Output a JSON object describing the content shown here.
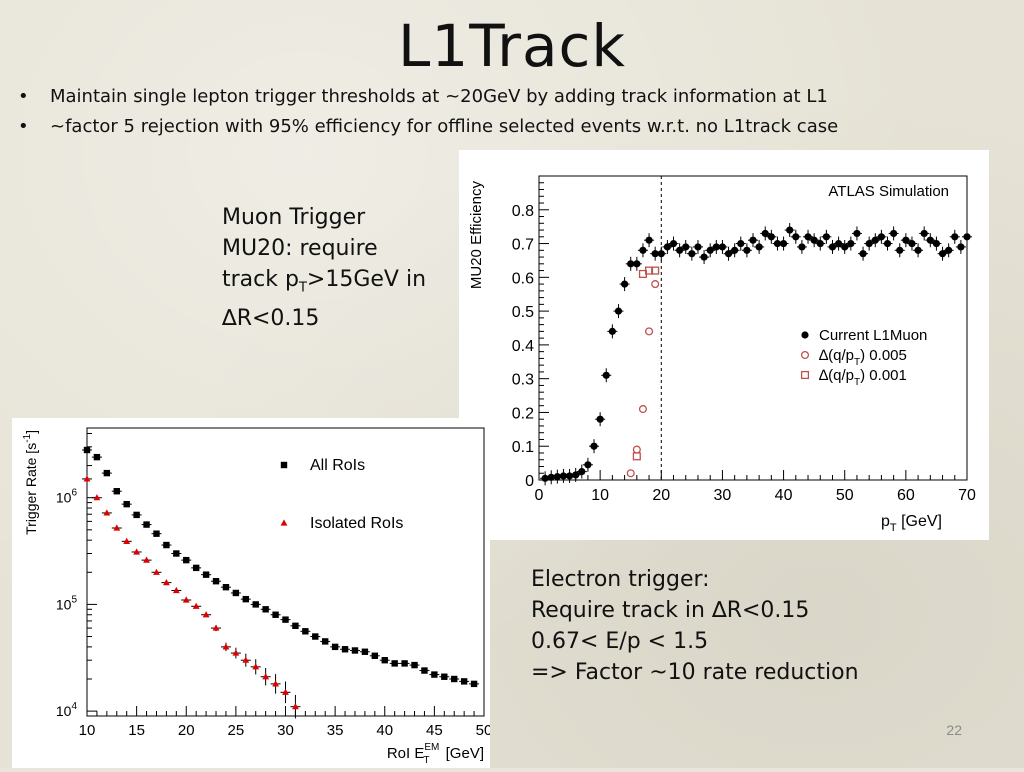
{
  "slide": {
    "title": "L1Track",
    "bullet_marker": "•",
    "bullets": [
      "Maintain single lepton trigger thresholds at ~20GeV by adding track information at L1",
      "~factor 5 rejection with 95% efficiency for offline selected events w.r.t. no L1track case"
    ],
    "muon_note": [
      "Muon Trigger",
      "MU20: require",
      "track p",
      "T",
      ">15GeV in",
      "∆R<0.15"
    ],
    "electron_note": [
      "Electron trigger:",
      "Require track in ∆R<0.15",
      "0.67< E/p < 1.5",
      "=> Factor ~10 rate reduction"
    ],
    "page_number": "22"
  },
  "chart_data": [
    {
      "type": "scatter",
      "title": "ATLAS Simulation",
      "xlabel": "p",
      "xlabel_sub": "T",
      "xlabel_unit": " [GeV]",
      "ylabel": "MU20 Efficiency",
      "xlim": [
        0,
        70
      ],
      "ylim": [
        0,
        0.9
      ],
      "xticks": [
        0,
        10,
        20,
        30,
        40,
        50,
        60,
        70
      ],
      "yticks": [
        0,
        0.1,
        0.2,
        0.3,
        0.4,
        0.5,
        0.6,
        0.7,
        0.8
      ],
      "ytick_labels": [
        "0",
        "0.1",
        "0.2",
        "0.3",
        "0.4",
        "0.5",
        "0.6",
        "0.7",
        "0.8"
      ],
      "threshold_line_x": 20,
      "legend_position": "right",
      "grid": false,
      "series": [
        {
          "name": "Current L1Muon",
          "marker": "filled-circle",
          "color": "#000000",
          "x": [
            1,
            2,
            3,
            4,
            5,
            6,
            7,
            8,
            9,
            10,
            11,
            12,
            13,
            14,
            15,
            16,
            17,
            18,
            19,
            20,
            21,
            22,
            23,
            24,
            25,
            26,
            27,
            28,
            29,
            30,
            31,
            32,
            33,
            34,
            35,
            36,
            37,
            38,
            39,
            40,
            41,
            42,
            43,
            44,
            45,
            46,
            47,
            48,
            49,
            50,
            51,
            52,
            53,
            54,
            55,
            56,
            57,
            58,
            59,
            60,
            61,
            62,
            63,
            64,
            65,
            66,
            67,
            68,
            69,
            70
          ],
          "y": [
            0.005,
            0.008,
            0.01,
            0.012,
            0.012,
            0.015,
            0.025,
            0.045,
            0.1,
            0.18,
            0.31,
            0.44,
            0.5,
            0.58,
            0.64,
            0.64,
            0.68,
            0.71,
            0.67,
            0.67,
            0.69,
            0.7,
            0.68,
            0.69,
            0.67,
            0.69,
            0.66,
            0.68,
            0.69,
            0.69,
            0.67,
            0.68,
            0.7,
            0.68,
            0.71,
            0.69,
            0.73,
            0.72,
            0.7,
            0.7,
            0.74,
            0.72,
            0.69,
            0.72,
            0.71,
            0.7,
            0.72,
            0.69,
            0.7,
            0.69,
            0.7,
            0.73,
            0.67,
            0.7,
            0.71,
            0.72,
            0.7,
            0.73,
            0.68,
            0.71,
            0.7,
            0.68,
            0.73,
            0.71,
            0.7,
            0.67,
            0.68,
            0.72,
            0.69,
            0.72
          ]
        },
        {
          "name": "∆(q/p",
          "name_sub": "T",
          "name_suffix": ") 0.005",
          "marker": "open-circle",
          "color": "#c0504d",
          "x": [
            15,
            16,
            17,
            18,
            19
          ],
          "y": [
            0.02,
            0.09,
            0.21,
            0.44,
            0.58
          ]
        },
        {
          "name": "∆(q/p",
          "name_sub": "T",
          "name_suffix": ") 0.001",
          "marker": "open-square",
          "color": "#c0504d",
          "x": [
            16,
            17,
            18,
            19
          ],
          "y": [
            0.07,
            0.61,
            0.62,
            0.62
          ]
        }
      ]
    },
    {
      "type": "scatter",
      "title": "",
      "xlabel": "RoI E",
      "xlabel_sup": "EM",
      "xlabel_sub": "T",
      "xlabel_unit": " [GeV]",
      "ylabel": "Trigger Rate [s",
      "ylabel_sup": "-1",
      "ylabel_suffix": "]",
      "yscale": "log",
      "xlim": [
        10,
        50
      ],
      "ylim": [
        9000,
        4500000
      ],
      "xticks": [
        10,
        15,
        20,
        25,
        30,
        35,
        40,
        45,
        50
      ],
      "yticks": [
        10000,
        100000,
        1000000
      ],
      "ytick_base": "10",
      "ytick_exponents": [
        "4",
        "5",
        "6"
      ],
      "legend_position": "top-right",
      "grid": false,
      "series": [
        {
          "name": "All RoIs",
          "marker": "filled-square",
          "color": "#000000",
          "x": [
            10,
            11,
            12,
            13,
            14,
            15,
            16,
            17,
            18,
            19,
            20,
            21,
            22,
            23,
            24,
            25,
            26,
            27,
            28,
            29,
            30,
            31,
            32,
            33,
            34,
            35,
            36,
            37,
            38,
            39,
            40,
            41,
            42,
            43,
            44,
            45,
            46,
            47,
            48,
            49
          ],
          "y": [
            2800000,
            2400000,
            1700000,
            1150000,
            870000,
            690000,
            560000,
            460000,
            360000,
            300000,
            260000,
            220000,
            190000,
            165000,
            145000,
            128000,
            112000,
            100000,
            90000,
            80000,
            72000,
            63000,
            56000,
            50000,
            45000,
            40000,
            38000,
            37000,
            36000,
            33000,
            30000,
            28000,
            28000,
            27000,
            24000,
            22000,
            21000,
            20000,
            19000,
            18000
          ]
        },
        {
          "name": "Isolated RoIs",
          "marker": "filled-triangle",
          "color": "#e00000",
          "x": [
            10,
            11,
            12,
            13,
            14,
            15,
            16,
            17,
            18,
            19,
            20,
            21,
            22,
            23,
            24,
            25,
            26,
            27,
            28,
            29,
            30,
            31
          ],
          "y": [
            1500000,
            1000000,
            720000,
            520000,
            390000,
            310000,
            260000,
            200000,
            160000,
            135000,
            110000,
            96000,
            80000,
            60000,
            40000,
            35000,
            30000,
            26000,
            21000,
            18000,
            15000,
            11000
          ]
        }
      ]
    }
  ]
}
